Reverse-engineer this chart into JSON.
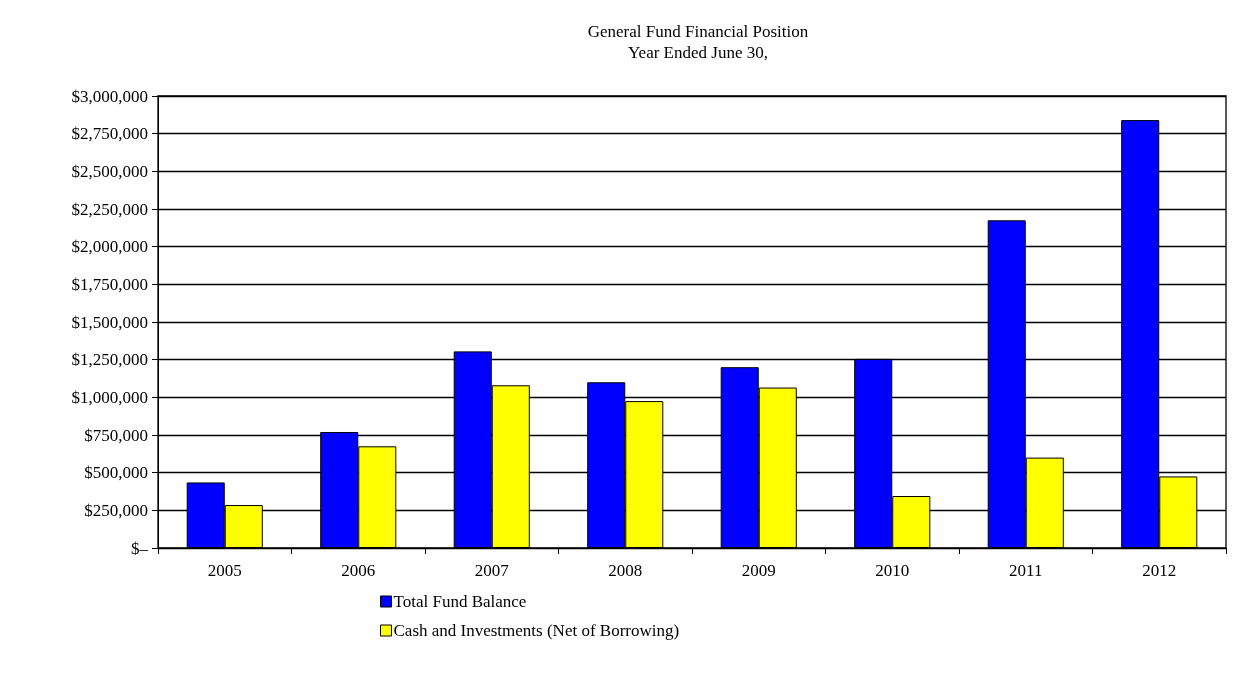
{
  "chart_data": {
    "type": "bar",
    "title": "General Fund Financial Position",
    "subtitle": "Year Ended June 30,",
    "categories": [
      "2005",
      "2006",
      "2007",
      "2008",
      "2009",
      "2010",
      "2011",
      "2012"
    ],
    "series": [
      {
        "name": "Total Fund Balance",
        "color": "#0000ff",
        "values": [
          435000,
          770000,
          1305000,
          1100000,
          1200000,
          1255000,
          2175000,
          2840000
        ]
      },
      {
        "name": "Cash and Investments (Net of Borrowing)",
        "color": "#ffff00",
        "values": [
          285000,
          675000,
          1080000,
          975000,
          1065000,
          345000,
          600000,
          475000
        ]
      }
    ],
    "ylim": [
      0,
      3000000
    ],
    "yticks": [
      {
        "value": 0,
        "label": "$–"
      },
      {
        "value": 250000,
        "label": "$250,000"
      },
      {
        "value": 500000,
        "label": "$500,000"
      },
      {
        "value": 750000,
        "label": "$750,000"
      },
      {
        "value": 1000000,
        "label": "$1,000,000"
      },
      {
        "value": 1250000,
        "label": "$1,250,000"
      },
      {
        "value": 1500000,
        "label": "$1,500,000"
      },
      {
        "value": 1750000,
        "label": "$1,750,000"
      },
      {
        "value": 2000000,
        "label": "$2,000,000"
      },
      {
        "value": 2250000,
        "label": "$2,250,000"
      },
      {
        "value": 2500000,
        "label": "$2,500,000"
      },
      {
        "value": 2750000,
        "label": "$2,750,000"
      },
      {
        "value": 3000000,
        "label": "$3,000,000"
      }
    ],
    "grid": "y",
    "legend": "bottom"
  }
}
